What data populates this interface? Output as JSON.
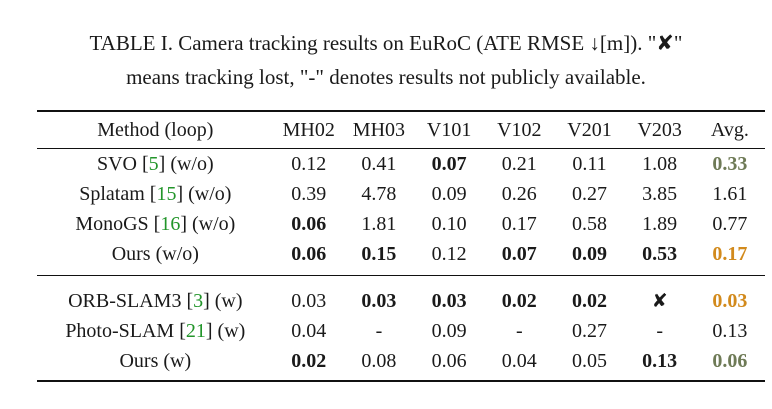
{
  "caption": {
    "line1": "TABLE I. Camera tracking results on EuRoC (ATE RMSE ↓[m]). \"✘\"",
    "line2": "means tracking lost, \"-\" denotes results not publicly available."
  },
  "columns": [
    "Method (loop)",
    "MH02",
    "MH03",
    "V101",
    "V102",
    "V201",
    "V203",
    "Avg."
  ],
  "rows_wo": [
    {
      "name": "SVO [",
      "ref": "5",
      "suffix": "] (w/o)",
      "values": [
        "0.12",
        "0.41",
        "0.07",
        "0.21",
        "0.11",
        "1.08",
        "0.33"
      ]
    },
    {
      "name": "Splatam [",
      "ref": "15",
      "suffix": "] (w/o)",
      "values": [
        "0.39",
        "4.78",
        "0.09",
        "0.26",
        "0.27",
        "3.85",
        "1.61"
      ]
    },
    {
      "name": "MonoGS [",
      "ref": "16",
      "suffix": "] (w/o)",
      "values": [
        "0.06",
        "1.81",
        "0.10",
        "0.17",
        "0.58",
        "1.89",
        "0.77"
      ]
    },
    {
      "name": "Ours (w/o)",
      "values": [
        "0.06",
        "0.15",
        "0.12",
        "0.07",
        "0.09",
        "0.53",
        "0.17"
      ]
    }
  ],
  "rows_w": [
    {
      "name": "ORB-SLAM3 [",
      "ref": "3",
      "suffix": "] (w)",
      "values": [
        "0.03",
        "0.03",
        "0.03",
        "0.02",
        "0.02",
        "✘",
        "0.03"
      ]
    },
    {
      "name": "Photo-SLAM [",
      "ref": "21",
      "suffix": "] (w)",
      "values": [
        "0.04",
        "-",
        "0.09",
        "-",
        "0.27",
        "-",
        "0.13"
      ]
    },
    {
      "name": "Ours (w)",
      "values": [
        "0.02",
        "0.08",
        "0.06",
        "0.04",
        "0.05",
        "0.13",
        "0.06"
      ]
    }
  ]
}
